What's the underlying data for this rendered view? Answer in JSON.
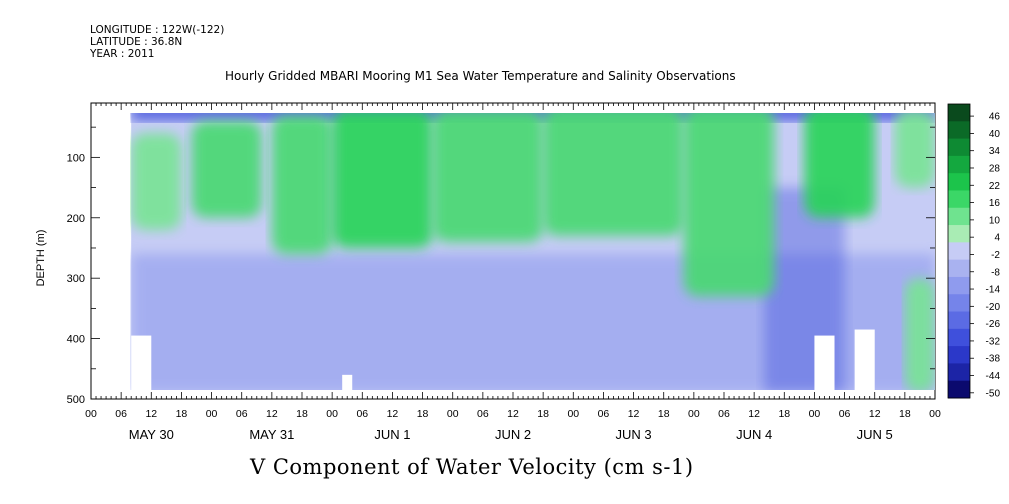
{
  "header": {
    "longitude": "LONGITUDE : 122W(-122)",
    "latitude": "LATITUDE : 36.8N",
    "year": "YEAR : 2011"
  },
  "colors": {
    "deep_negative": "#0b0a6e",
    "negative": "#2e3fd8",
    "slightly_negative": "#8f9bee",
    "near_zero": "#c6ccf5",
    "slightly_positive": "#a9ecb4",
    "positive": "#27d456",
    "deep_positive": "#0a5d22",
    "missing": "#ffffff"
  },
  "chart_data": {
    "type": "heatmap",
    "title": "Hourly Gridded MBARI Mooring M1 Sea Water Temperature and Salinity Observations",
    "xlabel": "V Component of Water Velocity (cm s-1)",
    "ylabel": "DEPTH (m)",
    "x_unit": "hours since 2011-05-30 00:00",
    "xlim": [
      0,
      168
    ],
    "ylim": [
      500,
      10
    ],
    "y_ticks": [
      100,
      200,
      300,
      400,
      500
    ],
    "x_hour_ticks": [
      "00",
      "06",
      "12",
      "18",
      "00",
      "06",
      "12",
      "18",
      "00",
      "06",
      "12",
      "18",
      "00",
      "06",
      "12",
      "18",
      "00",
      "06",
      "12",
      "18",
      "00",
      "06",
      "12",
      "18",
      "00",
      "06",
      "12",
      "18",
      "00"
    ],
    "day_labels": [
      "MAY 30",
      "MAY 31",
      "JUN  1",
      "JUN  2",
      "JUN  3",
      "JUN  4",
      "JUN  5"
    ],
    "colorbar_levels": [
      46,
      40,
      34,
      28,
      22,
      16,
      10,
      4,
      -2,
      -8,
      -14,
      -20,
      -26,
      -32,
      -38,
      -44,
      -50
    ],
    "colorbar_colors": [
      "#0a4a1d",
      "#0b6a27",
      "#0e8a33",
      "#14a83f",
      "#1cc44b",
      "#3bd767",
      "#6fe38f",
      "#a9ecb4",
      "#c6ccf5",
      "#a9b2f0",
      "#8f9bee",
      "#7584ea",
      "#5b6be4",
      "#3f50dc",
      "#2b38c9",
      "#1c24a6",
      "#0b0a6e"
    ],
    "data_start_hour": 8,
    "green_features": [
      {
        "hour_start": 8,
        "hour_end": 18,
        "depth_top": 60,
        "depth_bottom": 220,
        "value": 10
      },
      {
        "hour_start": 20,
        "hour_end": 34,
        "depth_top": 40,
        "depth_bottom": 200,
        "value": 16
      },
      {
        "hour_start": 36,
        "hour_end": 48,
        "depth_top": 30,
        "depth_bottom": 260,
        "value": 16
      },
      {
        "hour_start": 48,
        "hour_end": 68,
        "depth_top": 20,
        "depth_bottom": 250,
        "value": 22
      },
      {
        "hour_start": 68,
        "hour_end": 90,
        "depth_top": 20,
        "depth_bottom": 240,
        "value": 16
      },
      {
        "hour_start": 90,
        "hour_end": 118,
        "depth_top": 15,
        "depth_bottom": 230,
        "value": 16
      },
      {
        "hour_start": 118,
        "hour_end": 136,
        "depth_top": 15,
        "depth_bottom": 330,
        "value": 16
      },
      {
        "hour_start": 142,
        "hour_end": 156,
        "depth_top": 15,
        "depth_bottom": 200,
        "value": 22
      },
      {
        "hour_start": 160,
        "hour_end": 168,
        "depth_top": 20,
        "depth_bottom": 150,
        "value": 10
      },
      {
        "hour_start": 162,
        "hour_end": 168,
        "depth_top": 300,
        "depth_bottom": 490,
        "value": 10
      }
    ]
  }
}
